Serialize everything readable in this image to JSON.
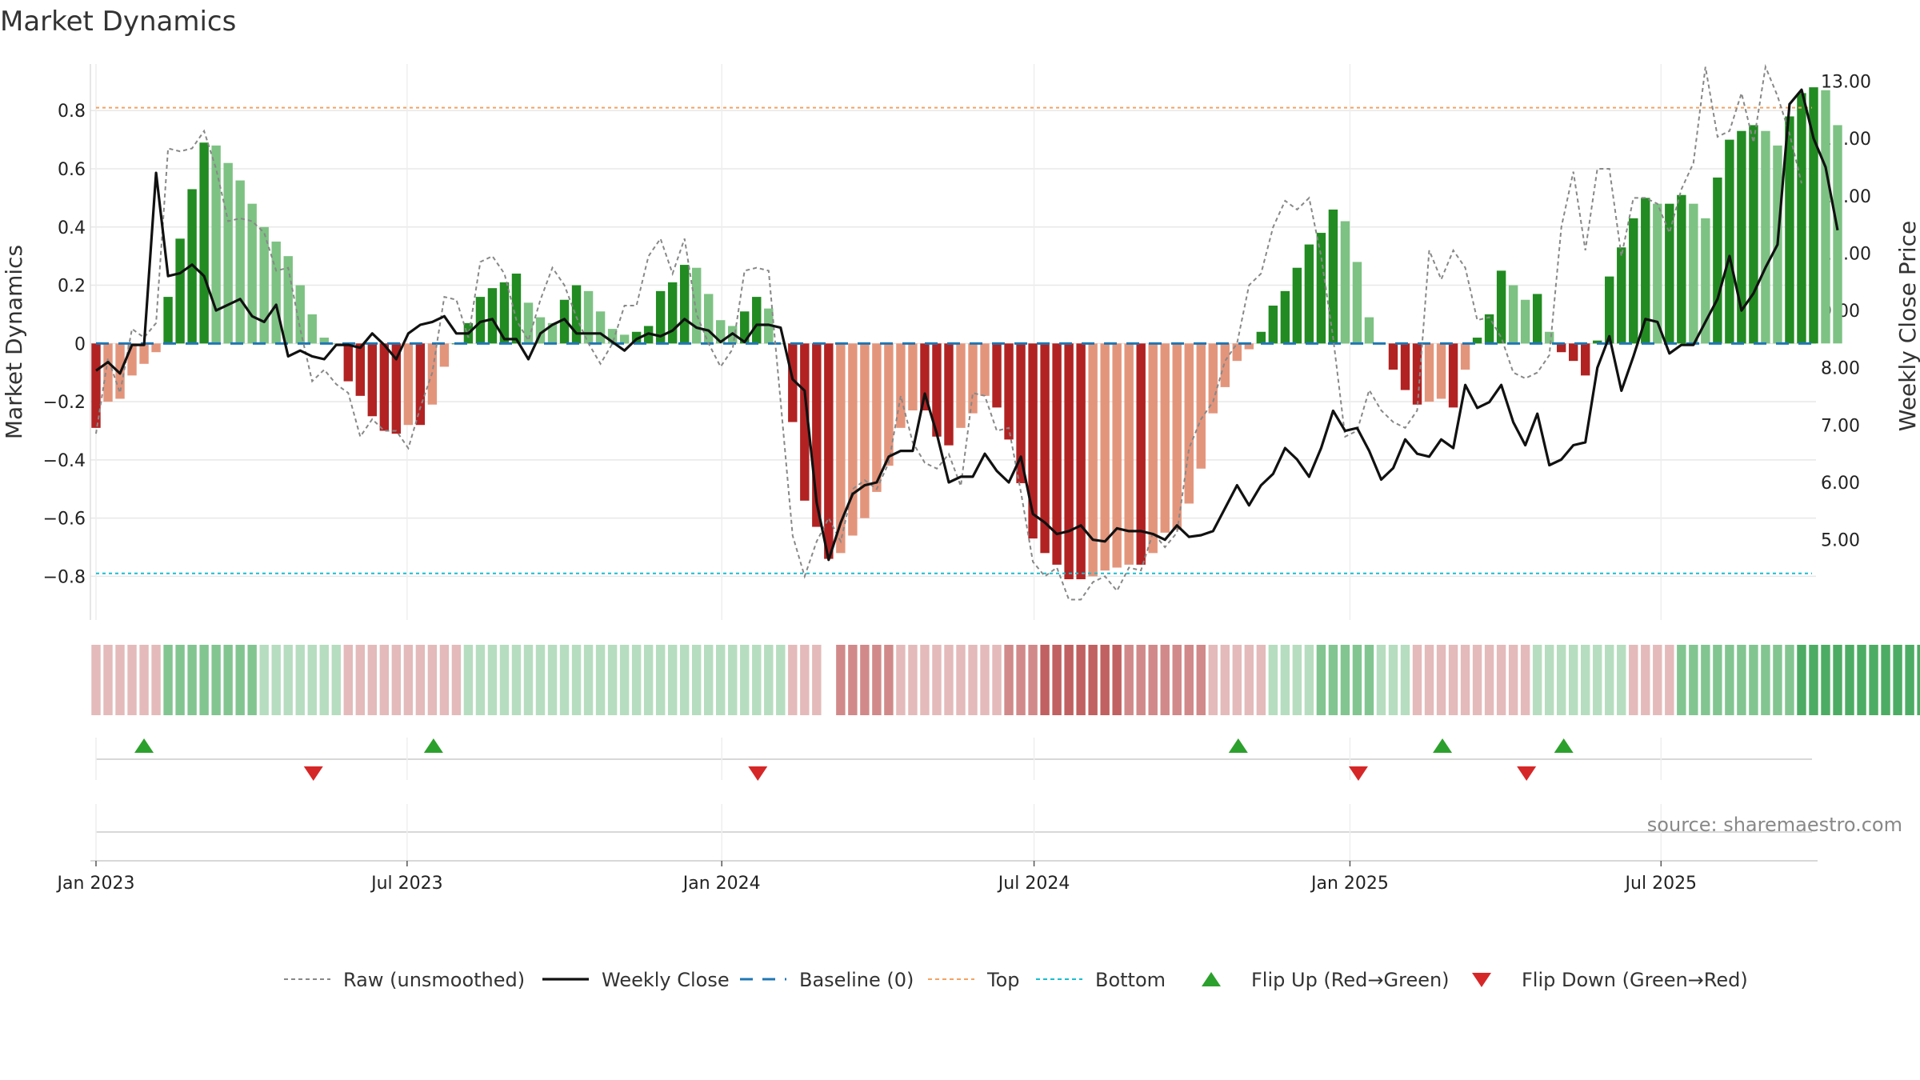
{
  "chart_data": {
    "type": "bar",
    "title": "Market Dynamics",
    "ylabel": "Market Dynamics",
    "y2label": "Weekly Close Price",
    "ylim": [
      -0.95,
      0.96
    ],
    "y2lim": [
      3.6,
      13.3
    ],
    "y_ticks": [
      -0.8,
      -0.6,
      -0.4,
      -0.2,
      0,
      0.2,
      0.4,
      0.6,
      0.8
    ],
    "y_tick_labels": [
      "−0.8",
      "−0.6",
      "−0.4",
      "−0.2",
      "0",
      "0.2",
      "0.4",
      "0.6",
      "0.8"
    ],
    "y2_ticks": [
      5,
      6,
      7,
      8,
      9,
      10,
      11,
      12,
      13
    ],
    "y2_tick_labels": [
      "5.00",
      "6.00",
      "7.00",
      "8.00",
      "9.00",
      "10.00",
      "11.00",
      "12.00",
      "13.00"
    ],
    "x_ticks": [
      {
        "week": 0,
        "label": "Jan 2023"
      },
      {
        "week": 25.9,
        "label": "Jul 2023"
      },
      {
        "week": 52.1,
        "label": "Jan 2024"
      },
      {
        "week": 78.1,
        "label": "Jul 2024"
      },
      {
        "week": 104.4,
        "label": "Jan 2025"
      },
      {
        "week": 130.3,
        "label": "Jul 2025"
      }
    ],
    "weeks_start": "2023-01-02",
    "top_level": 0.81,
    "bottom_level": -0.79,
    "baseline": 0,
    "grid": true,
    "bar_values": [
      -0.29,
      -0.2,
      -0.19,
      -0.11,
      -0.07,
      -0.03,
      0.16,
      0.36,
      0.53,
      0.69,
      0.68,
      0.62,
      0.56,
      0.48,
      0.4,
      0.35,
      0.3,
      0.2,
      0.1,
      0.02,
      0.0,
      -0.13,
      -0.18,
      -0.25,
      -0.3,
      -0.31,
      -0.28,
      -0.28,
      -0.21,
      -0.08,
      0.0,
      0.07,
      0.16,
      0.19,
      0.21,
      0.24,
      0.14,
      0.09,
      0.07,
      0.15,
      0.2,
      0.18,
      0.11,
      0.05,
      0.03,
      0.04,
      0.06,
      0.18,
      0.21,
      0.27,
      0.26,
      0.17,
      0.08,
      0.06,
      0.11,
      0.16,
      0.12,
      0.0,
      -0.27,
      -0.54,
      -0.63,
      -0.74,
      -0.72,
      -0.66,
      -0.6,
      -0.51,
      -0.42,
      -0.29,
      -0.23,
      -0.23,
      -0.32,
      -0.35,
      -0.29,
      -0.24,
      -0.18,
      -0.22,
      -0.33,
      -0.48,
      -0.67,
      -0.72,
      -0.76,
      -0.81,
      -0.81,
      -0.8,
      -0.78,
      -0.77,
      -0.76,
      -0.76,
      -0.72,
      -0.65,
      -0.64,
      -0.55,
      -0.43,
      -0.24,
      -0.15,
      -0.06,
      -0.02,
      0.04,
      0.13,
      0.18,
      0.26,
      0.34,
      0.38,
      0.46,
      0.42,
      0.28,
      0.09,
      0.0,
      -0.09,
      -0.16,
      -0.21,
      -0.2,
      -0.19,
      -0.22,
      -0.09,
      0.02,
      0.1,
      0.25,
      0.2,
      0.15,
      0.17,
      0.04,
      -0.03,
      -0.06,
      -0.11,
      0.01,
      0.23,
      0.33,
      0.43,
      0.5,
      0.48,
      0.48,
      0.51,
      0.48,
      0.43,
      0.57,
      0.7,
      0.73,
      0.75,
      0.73,
      0.68,
      0.78,
      0.86,
      0.88,
      0.87,
      0.75
    ],
    "raw_values": [
      -0.31,
      -0.05,
      -0.17,
      0.05,
      0.02,
      0.07,
      0.67,
      0.66,
      0.67,
      0.73,
      0.6,
      0.42,
      0.43,
      0.42,
      0.38,
      0.25,
      0.26,
      0.05,
      -0.13,
      -0.09,
      -0.14,
      -0.17,
      -0.32,
      -0.26,
      -0.3,
      -0.3,
      -0.36,
      -0.22,
      -0.1,
      0.16,
      0.15,
      0.02,
      0.28,
      0.3,
      0.24,
      0.08,
      0.01,
      0.15,
      0.26,
      0.2,
      0.09,
      0.0,
      -0.07,
      0.0,
      0.13,
      0.13,
      0.3,
      0.36,
      0.24,
      0.36,
      0.1,
      0.0,
      -0.08,
      -0.02,
      0.25,
      0.26,
      0.25,
      -0.2,
      -0.66,
      -0.8,
      -0.68,
      -0.6,
      -0.68,
      -0.5,
      -0.47,
      -0.5,
      -0.41,
      -0.18,
      -0.34,
      -0.41,
      -0.43,
      -0.38,
      -0.49,
      -0.17,
      -0.18,
      -0.3,
      -0.29,
      -0.51,
      -0.75,
      -0.8,
      -0.77,
      -0.88,
      -0.88,
      -0.82,
      -0.8,
      -0.85,
      -0.77,
      -0.78,
      -0.65,
      -0.7,
      -0.65,
      -0.36,
      -0.26,
      -0.2,
      -0.06,
      0.0,
      0.2,
      0.24,
      0.4,
      0.49,
      0.46,
      0.5,
      0.3,
      0.02,
      -0.32,
      -0.3,
      -0.16,
      -0.23,
      -0.27,
      -0.29,
      -0.23,
      0.32,
      0.22,
      0.32,
      0.26,
      0.08,
      0.09,
      0.02,
      -0.1,
      -0.12,
      -0.1,
      -0.04,
      0.4,
      0.59,
      0.32,
      0.6,
      0.6,
      0.3,
      0.5,
      0.5,
      0.48,
      0.38,
      0.53,
      0.62,
      0.95,
      0.71,
      0.73,
      0.86,
      0.69,
      0.95,
      0.85,
      0.72,
      0.55
    ],
    "close_values": [
      7.95,
      8.1,
      7.9,
      8.4,
      8.4,
      11.4,
      9.6,
      9.65,
      9.8,
      9.6,
      9.0,
      9.1,
      9.2,
      8.9,
      8.8,
      9.1,
      8.2,
      8.3,
      8.2,
      8.15,
      8.4,
      8.4,
      8.35,
      8.6,
      8.4,
      8.15,
      8.6,
      8.75,
      8.8,
      8.9,
      8.6,
      8.6,
      8.8,
      8.85,
      8.5,
      8.5,
      8.15,
      8.6,
      8.75,
      8.85,
      8.6,
      8.6,
      8.6,
      8.45,
      8.3,
      8.5,
      8.6,
      8.55,
      8.65,
      8.85,
      8.7,
      8.65,
      8.45,
      8.6,
      8.45,
      8.75,
      8.75,
      8.7,
      7.8,
      7.6,
      5.65,
      4.65,
      5.3,
      5.8,
      5.95,
      6.0,
      6.45,
      6.55,
      6.55,
      7.55,
      6.85,
      6.0,
      6.1,
      6.1,
      6.5,
      6.2,
      6.0,
      6.45,
      5.45,
      5.3,
      5.1,
      5.15,
      5.25,
      5.0,
      4.97,
      5.2,
      5.15,
      5.15,
      5.1,
      5.0,
      5.25,
      5.05,
      5.08,
      5.15,
      5.55,
      5.95,
      5.6,
      5.95,
      6.15,
      6.6,
      6.4,
      6.1,
      6.6,
      7.25,
      6.9,
      6.95,
      6.55,
      6.05,
      6.25,
      6.75,
      6.5,
      6.45,
      6.75,
      6.6,
      7.7,
      7.3,
      7.4,
      7.7,
      7.05,
      6.65,
      7.2,
      6.3,
      6.4,
      6.65,
      6.7,
      8.0,
      8.55,
      7.6,
      8.2,
      8.85,
      8.8,
      8.25,
      8.4,
      8.4,
      8.8,
      9.2,
      9.95,
      9.0,
      9.3,
      9.75,
      10.15,
      12.6,
      12.85,
      12.0,
      11.5,
      10.4
    ],
    "regime_levels": [
      -1,
      -1,
      -1,
      -1,
      -1,
      -1,
      2,
      2,
      2,
      2,
      2,
      2,
      2,
      2,
      1,
      1,
      1,
      1,
      1,
      1,
      1,
      -1,
      -1,
      -1,
      -1,
      -1,
      -1,
      -1,
      -1,
      -1,
      -1,
      1,
      1,
      1,
      1,
      1,
      1,
      1,
      1,
      1,
      1,
      1,
      1,
      1,
      1,
      1,
      1,
      1,
      1,
      1,
      1,
      1,
      1,
      1,
      1,
      1,
      1,
      1,
      -1,
      -1,
      -1,
      0,
      -2,
      -2,
      -2,
      -2,
      -2,
      -1,
      -1,
      -1,
      -1,
      -1,
      -1,
      -1,
      -1,
      -1,
      -2,
      -2,
      -2,
      -3,
      -3,
      -3,
      -3,
      -3,
      -3,
      -3,
      -2,
      -2,
      -2,
      -2,
      -2,
      -2,
      -2,
      -1,
      -1,
      -1,
      -1,
      -1,
      1,
      1,
      1,
      1,
      2,
      2,
      2,
      2,
      2,
      1,
      1,
      1,
      -1,
      -1,
      -1,
      -1,
      -1,
      -1,
      -1,
      -1,
      -1,
      -1,
      1,
      1,
      1,
      1,
      1,
      1,
      1,
      1,
      -1,
      -1,
      -1,
      -1,
      2,
      2,
      2,
      2,
      2,
      2,
      2,
      2,
      2,
      2,
      3,
      3,
      3,
      3,
      3,
      3,
      3,
      3,
      3,
      3,
      3,
      3
    ],
    "flip_up_weeks": [
      4.0,
      28.1,
      95.1,
      112.1,
      122.2
    ],
    "flip_down_weeks": [
      18.1,
      55.1,
      105.1,
      119.1
    ],
    "series": [
      {
        "name": "Raw (unsmoothed)",
        "color": "#888888",
        "style": "dotted"
      },
      {
        "name": "Weekly Close",
        "color": "#111111",
        "style": "solid"
      },
      {
        "name": "Baseline (0)",
        "color": "#1f77b4",
        "style": "dashed"
      },
      {
        "name": "Top",
        "color": "#f4a261",
        "style": "dotted"
      },
      {
        "name": "Bottom",
        "color": "#17becf",
        "style": "dotted"
      },
      {
        "name": "Flip Up (Red→Green)",
        "color": "#2ca02c",
        "style": "triangle-up"
      },
      {
        "name": "Flip Down (Green→Red)",
        "color": "#d62728",
        "style": "triangle-down"
      }
    ],
    "legend_position": "bottom-center",
    "colors": {
      "bar_green_strong": "#228b22",
      "bar_green_light": "#7dc283",
      "bar_red_strong": "#b22222",
      "bar_red_light": "#e3957c",
      "regime_green": "#2e9e48",
      "regime_red": "#b23a3a"
    },
    "source": "source: sharemaestro.com"
  }
}
